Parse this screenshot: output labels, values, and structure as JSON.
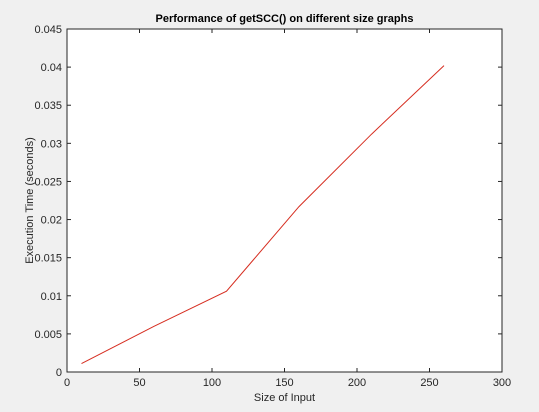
{
  "chart_data": {
    "type": "line",
    "title": "Performance of getSCC() on different size graphs",
    "xlabel": "Size of Input",
    "ylabel": "Execution Time (seconds)",
    "xlim": [
      0,
      300
    ],
    "ylim": [
      0,
      0.045
    ],
    "xticks": [
      0,
      50,
      100,
      150,
      200,
      250,
      300
    ],
    "xtick_labels": [
      "0",
      "50",
      "100",
      "150",
      "200",
      "250",
      "300"
    ],
    "yticks": [
      0,
      0.005,
      0.01,
      0.015,
      0.02,
      0.025,
      0.03,
      0.035,
      0.04,
      0.045
    ],
    "ytick_labels": [
      "0",
      "0.005",
      "0.01",
      "0.015",
      "0.02",
      "0.025",
      "0.03",
      "0.035",
      "0.04",
      "0.045"
    ],
    "grid": false,
    "series": [
      {
        "color": "#d62d20",
        "x": [
          10,
          60,
          110,
          160,
          210,
          260
        ],
        "y": [
          0.0011,
          0.006,
          0.0106,
          0.0217,
          0.0312,
          0.0402
        ]
      }
    ]
  }
}
